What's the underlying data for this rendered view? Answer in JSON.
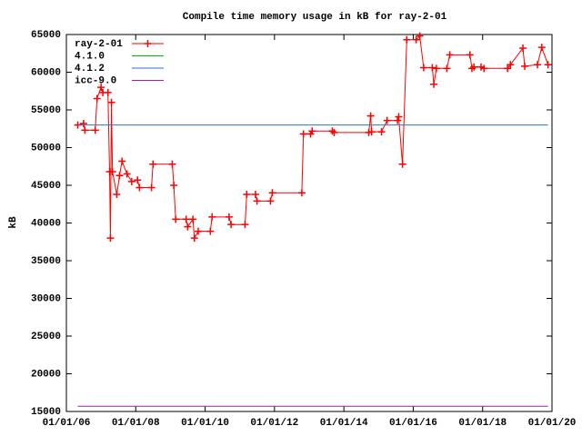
{
  "chart_data": {
    "type": "line",
    "title": "Compile time memory usage in kB for ray-2-01",
    "ylabel": "kB",
    "xlim": [
      "2006-01-01",
      "2020-01-01"
    ],
    "xticks": [
      {
        "value": "2006-01-01",
        "label": "01/01/06"
      },
      {
        "value": "2008-01-01",
        "label": "01/01/08"
      },
      {
        "value": "2010-01-01",
        "label": "01/01/10"
      },
      {
        "value": "2012-01-01",
        "label": "01/01/12"
      },
      {
        "value": "2014-01-01",
        "label": "01/01/14"
      },
      {
        "value": "2016-01-01",
        "label": "01/01/16"
      },
      {
        "value": "2018-01-01",
        "label": "01/01/18"
      },
      {
        "value": "2020-01-01",
        "label": "01/01/20"
      }
    ],
    "ylim": [
      15000,
      65000
    ],
    "yticks": [
      15000,
      20000,
      25000,
      30000,
      35000,
      40000,
      45000,
      50000,
      55000,
      60000,
      65000
    ],
    "legend": "top-left",
    "series": [
      {
        "name": "ray-2-01",
        "color": "#ff0000",
        "markers": true,
        "x": [
          "2006-05-01",
          "2006-07-01",
          "2006-07-15",
          "2006-11-01",
          "2006-11-20",
          "2007-01-01",
          "2007-01-20",
          "2007-03-15",
          "2007-04-01",
          "2007-04-10",
          "2007-04-20",
          "2007-05-01",
          "2007-06-15",
          "2007-07-15",
          "2007-08-10",
          "2007-10-01",
          "2007-11-20",
          "2008-01-20",
          "2008-02-10",
          "2008-06-15",
          "2008-07-01",
          "2009-01-20",
          "2009-02-05",
          "2009-02-25",
          "2009-06-15",
          "2009-07-01",
          "2009-08-25",
          "2009-09-10",
          "2009-10-20",
          "2010-02-25",
          "2010-03-15",
          "2010-09-10",
          "2010-10-01",
          "2011-02-25",
          "2011-03-15",
          "2011-06-15",
          "2011-07-01",
          "2011-11-20",
          "2011-12-10",
          "2012-10-15",
          "2012-11-01",
          "2013-01-15",
          "2013-02-01",
          "2013-09-01",
          "2013-09-20",
          "2014-09-20",
          "2014-10-10",
          "2014-10-20",
          "2015-02-01",
          "2015-04-01",
          "2015-07-20",
          "2015-08-01",
          "2015-09-10",
          "2015-10-25",
          "2016-02-01",
          "2016-03-10",
          "2016-04-20",
          "2016-07-20",
          "2016-08-05",
          "2016-09-01",
          "2016-12-20",
          "2017-01-20",
          "2017-08-20",
          "2017-09-10",
          "2017-10-01",
          "2017-12-15",
          "2018-01-15",
          "2018-09-20",
          "2018-10-20",
          "2019-03-01",
          "2019-03-20",
          "2019-08-01",
          "2019-09-15",
          "2019-11-20"
        ],
        "values": [
          53000,
          53200,
          52300,
          52300,
          56500,
          58000,
          57300,
          57300,
          46800,
          38000,
          56000,
          46800,
          43800,
          46300,
          48200,
          46500,
          45500,
          45700,
          44700,
          44700,
          47800,
          47800,
          45000,
          40500,
          40500,
          39500,
          40500,
          38000,
          38900,
          38900,
          40800,
          40800,
          39800,
          39800,
          43800,
          43800,
          42900,
          42900,
          44000,
          44000,
          51800,
          51800,
          52200,
          52200,
          52000,
          52000,
          54200,
          52100,
          52100,
          53600,
          53600,
          54100,
          47800,
          64300,
          64300,
          64800,
          60600,
          60600,
          58400,
          60500,
          60500,
          62300,
          62300,
          60500,
          60700,
          60700,
          60500,
          60500,
          61000,
          63200,
          60800,
          61000,
          63300,
          61000
        ]
      },
      {
        "name": "4.1.0",
        "color": "#00c000",
        "markers": false,
        "x": [],
        "values": []
      },
      {
        "name": "4.1.2",
        "color": "#2a70d0",
        "markers": false,
        "x": [
          "2006-05-01",
          "2019-11-20"
        ],
        "values": [
          53000,
          53000
        ]
      },
      {
        "name": "icc-9.0",
        "color": "#a020a0",
        "markers": false,
        "x": [
          "2006-05-01",
          "2019-11-20"
        ],
        "values": [
          15700,
          15700
        ]
      }
    ]
  }
}
